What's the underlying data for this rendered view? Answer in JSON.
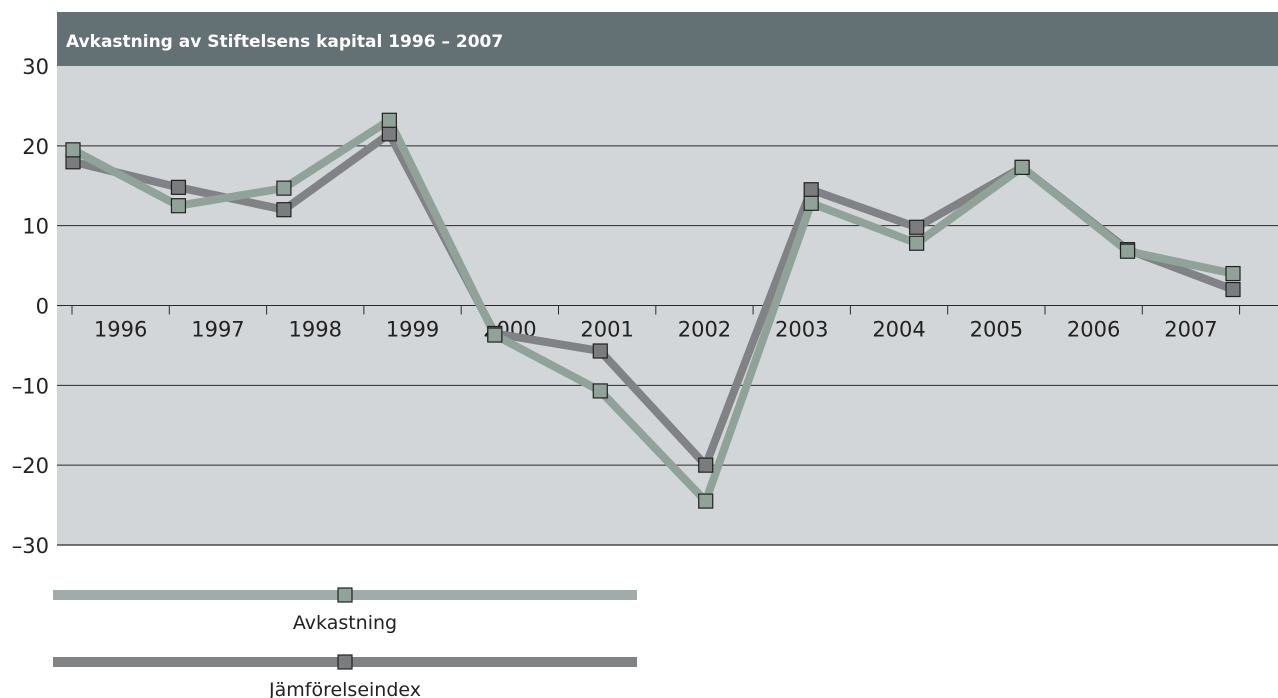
{
  "chart_data": {
    "type": "line",
    "title": "Avkastning av Stiftelsens kapital 1996 – 2007",
    "categories": [
      "1996",
      "1997",
      "1998",
      "1999",
      "2000",
      "2001",
      "2002",
      "2003",
      "2004",
      "2005",
      "2006",
      "2007"
    ],
    "y_ticks": [
      "30",
      "20",
      "10",
      "0",
      "–10",
      "–20",
      "–30"
    ],
    "ylim": [
      -30,
      30
    ],
    "grid": true,
    "legend_position": "bottom-left",
    "series": [
      {
        "name": "Jämförelseindex",
        "values": [
          18,
          14.8,
          12,
          21.5,
          -3.5,
          -5.7,
          -20,
          14.5,
          9.8,
          17.3,
          7,
          2
        ],
        "color": "#808285",
        "marker": "#7b7c7e"
      },
      {
        "name": "Avkastning",
        "values": [
          19.5,
          12.5,
          14.7,
          23.2,
          -3.7,
          -10.7,
          -24.5,
          12.8,
          7.8,
          17.3,
          6.8,
          4
        ],
        "color": "#8fa398",
        "marker": "#8fa398"
      }
    ],
    "colors": {
      "plot_bg": "#d2d6d8",
      "header_bg": "#637175",
      "gridline": "#2b2b2b",
      "legend_avkastning": "#a1abaa",
      "legend_index": "#808285"
    }
  }
}
